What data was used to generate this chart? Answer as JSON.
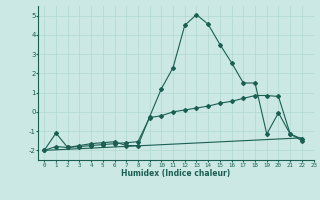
{
  "xlabel": "Humidex (Indice chaleur)",
  "bg_color": "#cce8e4",
  "line_color": "#1a5f52",
  "grid_color": "#b0d8d0",
  "xlim": [
    -0.5,
    23
  ],
  "ylim": [
    -2.5,
    5.5
  ],
  "yticks": [
    -2,
    -1,
    0,
    1,
    2,
    3,
    4,
    5
  ],
  "xticks": [
    0,
    1,
    2,
    3,
    4,
    5,
    6,
    7,
    8,
    9,
    10,
    11,
    12,
    13,
    14,
    15,
    16,
    17,
    18,
    19,
    20,
    21,
    22,
    23
  ],
  "curve1_x": [
    0,
    1,
    2,
    3,
    4,
    5,
    6,
    7,
    8,
    9,
    10,
    11,
    12,
    13,
    14,
    15,
    16,
    17,
    18,
    19,
    20,
    21,
    22
  ],
  "curve1_y": [
    -2.0,
    -1.1,
    -1.85,
    -1.75,
    -1.65,
    -1.6,
    -1.55,
    -1.75,
    -1.75,
    -0.25,
    1.2,
    2.3,
    4.5,
    5.05,
    4.55,
    3.5,
    2.55,
    1.5,
    1.5,
    -1.15,
    -0.05,
    -1.15,
    -1.5
  ],
  "curve2_x": [
    0,
    1,
    2,
    3,
    4,
    5,
    6,
    7,
    8,
    9,
    10,
    11,
    12,
    13,
    14,
    15,
    16,
    17,
    18,
    19,
    20,
    21,
    22
  ],
  "curve2_y": [
    -2.0,
    -1.8,
    -1.85,
    -1.8,
    -1.75,
    -1.7,
    -1.65,
    -1.6,
    -1.55,
    -0.3,
    -0.2,
    0.0,
    0.1,
    0.2,
    0.3,
    0.45,
    0.55,
    0.7,
    0.85,
    0.85,
    0.8,
    -1.15,
    -1.4
  ],
  "curve3_x": [
    0,
    22
  ],
  "curve3_y": [
    -2.0,
    -1.35
  ]
}
